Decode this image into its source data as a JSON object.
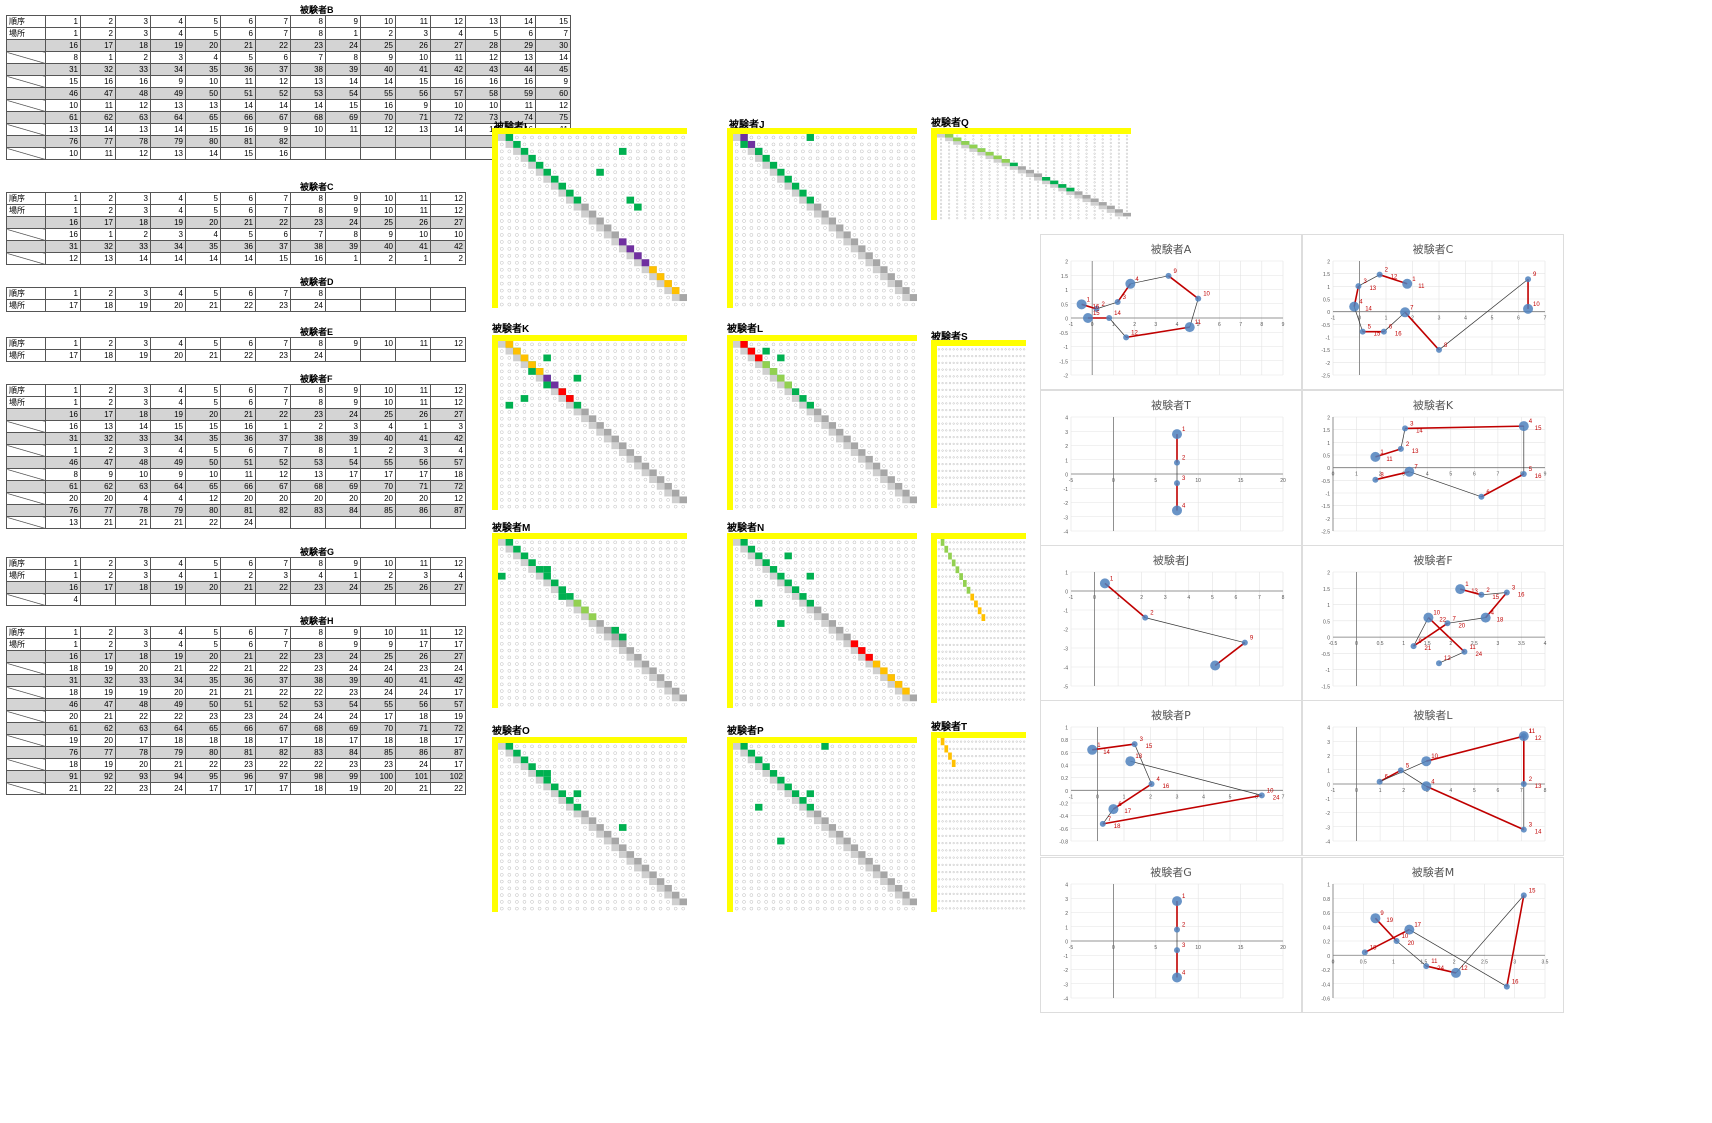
{
  "tables": [
    {
      "title": "被験者B",
      "hdr": [
        "順序",
        "場所"
      ],
      "rows": [
        [
          1,
          2,
          3,
          4,
          5,
          6,
          7,
          8,
          9,
          10,
          11,
          12,
          13,
          14,
          15
        ],
        [
          1,
          2,
          3,
          4,
          5,
          6,
          7,
          8,
          1,
          2,
          3,
          4,
          5,
          6,
          7
        ],
        [
          16,
          17,
          18,
          19,
          20,
          21,
          22,
          23,
          24,
          25,
          26,
          27,
          28,
          29,
          30
        ],
        [
          8,
          1,
          2,
          3,
          4,
          5,
          6,
          7,
          8,
          9,
          10,
          11,
          12,
          13,
          14
        ],
        [
          31,
          32,
          33,
          34,
          35,
          36,
          37,
          38,
          39,
          40,
          41,
          42,
          43,
          44,
          45
        ],
        [
          15,
          16,
          16,
          9,
          10,
          11,
          12,
          13,
          14,
          14,
          15,
          16,
          16,
          16,
          9
        ],
        [
          46,
          47,
          48,
          49,
          50,
          51,
          52,
          53,
          54,
          55,
          56,
          57,
          58,
          59,
          60
        ],
        [
          10,
          11,
          12,
          13,
          13,
          14,
          14,
          14,
          15,
          16,
          9,
          10,
          10,
          11,
          12
        ],
        [
          61,
          62,
          63,
          64,
          65,
          66,
          67,
          68,
          69,
          70,
          71,
          72,
          73,
          74,
          75
        ],
        [
          13,
          14,
          13,
          14,
          15,
          16,
          9,
          10,
          11,
          12,
          13,
          14,
          15,
          16,
          11
        ],
        [
          76,
          77,
          78,
          79,
          80,
          81,
          82,
          "",
          "",
          "",
          "",
          "",
          "",
          "",
          ""
        ],
        [
          10,
          11,
          12,
          13,
          14,
          15,
          16,
          "",
          "",
          "",
          "",
          "",
          "",
          "",
          ""
        ]
      ]
    },
    {
      "title": "被験者C",
      "hdr": [
        "順序",
        "場所"
      ],
      "rows": [
        [
          1,
          2,
          3,
          4,
          5,
          6,
          7,
          8,
          9,
          10,
          11,
          12
        ],
        [
          1,
          2,
          3,
          4,
          5,
          6,
          7,
          8,
          9,
          10,
          11,
          12
        ],
        [
          16,
          17,
          18,
          19,
          20,
          21,
          22,
          23,
          24,
          25,
          26,
          27
        ],
        [
          16,
          1,
          2,
          3,
          4,
          5,
          6,
          7,
          8,
          9,
          10,
          10
        ],
        [
          31,
          32,
          33,
          34,
          35,
          36,
          37,
          38,
          39,
          40,
          41,
          42
        ],
        [
          12,
          13,
          14,
          14,
          14,
          14,
          15,
          16,
          1,
          2,
          1,
          2
        ]
      ]
    },
    {
      "title": "被験者D",
      "hdr": [
        "順序",
        "場所"
      ],
      "rows": [
        [
          1,
          2,
          3,
          4,
          5,
          6,
          7,
          8,
          "",
          "",
          "",
          ""
        ],
        [
          17,
          18,
          19,
          20,
          21,
          22,
          23,
          24,
          "",
          "",
          "",
          ""
        ]
      ]
    },
    {
      "title": "被験者E",
      "hdr": [
        "順序",
        "場所"
      ],
      "rows": [
        [
          1,
          2,
          3,
          4,
          5,
          6,
          7,
          8,
          9,
          10,
          11,
          12
        ],
        [
          17,
          18,
          19,
          20,
          21,
          22,
          23,
          24,
          "",
          "",
          "",
          ""
        ]
      ]
    },
    {
      "title": "被験者F",
      "hdr": [
        "順序",
        "場所"
      ],
      "rows": [
        [
          1,
          2,
          3,
          4,
          5,
          6,
          7,
          8,
          9,
          10,
          11,
          12
        ],
        [
          1,
          2,
          3,
          4,
          5,
          6,
          7,
          8,
          9,
          10,
          11,
          12
        ],
        [
          16,
          17,
          18,
          19,
          20,
          21,
          22,
          23,
          24,
          25,
          26,
          27
        ],
        [
          16,
          13,
          14,
          15,
          15,
          16,
          1,
          2,
          3,
          4,
          1,
          3
        ],
        [
          31,
          32,
          33,
          34,
          35,
          36,
          37,
          38,
          39,
          40,
          41,
          42
        ],
        [
          1,
          2,
          3,
          4,
          5,
          6,
          7,
          8,
          1,
          2,
          3,
          4
        ],
        [
          46,
          47,
          48,
          49,
          50,
          51,
          52,
          53,
          54,
          55,
          56,
          57
        ],
        [
          8,
          9,
          10,
          9,
          10,
          11,
          12,
          13,
          17,
          17,
          17,
          18
        ],
        [
          61,
          62,
          63,
          64,
          65,
          66,
          67,
          68,
          69,
          70,
          71,
          72
        ],
        [
          20,
          20,
          4,
          4,
          12,
          20,
          20,
          20,
          20,
          20,
          20,
          12
        ],
        [
          76,
          77,
          78,
          79,
          80,
          81,
          82,
          83,
          84,
          85,
          86,
          87
        ],
        [
          13,
          21,
          21,
          21,
          22,
          24,
          "",
          "",
          "",
          "",
          "",
          ""
        ]
      ]
    },
    {
      "title": "被験者G",
      "hdr": [
        "順序",
        "場所"
      ],
      "rows": [
        [
          1,
          2,
          3,
          4,
          5,
          6,
          7,
          8,
          9,
          10,
          11,
          12
        ],
        [
          1,
          2,
          3,
          4,
          1,
          2,
          3,
          4,
          1,
          2,
          3,
          4
        ],
        [
          16,
          17,
          18,
          19,
          20,
          21,
          22,
          23,
          24,
          25,
          26,
          27
        ],
        [
          4,
          "",
          "",
          "",
          "",
          "",
          "",
          "",
          "",
          "",
          "",
          ""
        ]
      ]
    },
    {
      "title": "被験者H",
      "hdr": [
        "順序",
        "場所"
      ],
      "rows": [
        [
          1,
          2,
          3,
          4,
          5,
          6,
          7,
          8,
          9,
          10,
          11,
          12
        ],
        [
          1,
          2,
          3,
          4,
          5,
          6,
          7,
          8,
          9,
          9,
          17,
          17
        ],
        [
          16,
          17,
          18,
          19,
          20,
          21,
          22,
          23,
          24,
          25,
          26,
          27
        ],
        [
          18,
          19,
          20,
          21,
          22,
          21,
          22,
          23,
          24,
          24,
          23,
          24
        ],
        [
          31,
          32,
          33,
          34,
          35,
          36,
          37,
          38,
          39,
          40,
          41,
          42
        ],
        [
          18,
          19,
          19,
          20,
          21,
          21,
          22,
          22,
          23,
          24,
          24,
          17
        ],
        [
          46,
          47,
          48,
          49,
          50,
          51,
          52,
          53,
          54,
          55,
          56,
          57
        ],
        [
          20,
          21,
          22,
          22,
          23,
          23,
          24,
          24,
          24,
          17,
          18,
          19
        ],
        [
          61,
          62,
          63,
          64,
          65,
          66,
          67,
          68,
          69,
          70,
          71,
          72
        ],
        [
          19,
          20,
          17,
          18,
          18,
          18,
          17,
          18,
          17,
          18,
          18,
          17
        ],
        [
          76,
          77,
          78,
          79,
          80,
          81,
          82,
          83,
          84,
          85,
          86,
          87
        ],
        [
          18,
          19,
          20,
          21,
          22,
          23,
          22,
          22,
          23,
          23,
          24,
          17
        ],
        [
          91,
          92,
          93,
          94,
          95,
          96,
          97,
          98,
          99,
          100,
          101,
          102
        ],
        [
          21,
          22,
          23,
          24,
          17,
          17,
          17,
          18,
          19,
          20,
          21,
          22
        ]
      ]
    }
  ],
  "matrix_labels": [
    "被験者I",
    "被験者J",
    "被験者Q",
    "被験者K",
    "被験者L",
    "被験者S",
    "被験者M",
    "被験者N",
    "被験者O",
    "被験者P",
    "被験者T"
  ],
  "plot_titles": [
    "被験者A",
    "被験者C",
    "被験者T",
    "被験者K",
    "被験者J",
    "被験者F",
    "被験者P",
    "被験者L",
    "被験者G",
    "被験者M"
  ],
  "plots": {
    "A": {
      "xticks": [
        "-1",
        "0",
        "1",
        "2",
        "3",
        "4",
        "5",
        "6",
        "7",
        "8",
        "9"
      ],
      "yticks": [
        "2",
        "1.5",
        "1",
        "0.5",
        "0",
        "-0.5",
        "-1",
        "-1.5",
        "-2"
      ],
      "labels": [
        "1",
        "2",
        "3",
        "4",
        "9",
        "10",
        "11",
        "12",
        "14",
        "15",
        "16"
      ]
    },
    "C": {
      "xticks": [
        "-1",
        "0",
        "1",
        "2",
        "3",
        "4",
        "5",
        "6",
        "7"
      ],
      "yticks": [
        "2",
        "1.5",
        "1",
        "0.5",
        "0",
        "-0.5",
        "-1",
        "-1.5",
        "-2",
        "-2.5"
      ],
      "labels": [
        "1",
        "2",
        "3",
        "4",
        "5",
        "6",
        "7",
        "8",
        "9",
        "10",
        "11",
        "12",
        "13",
        "14",
        "15",
        "16"
      ]
    },
    "T": {
      "xticks": [
        "-5",
        "0",
        "5",
        "10",
        "15",
        "20"
      ],
      "yticks": [
        "4",
        "3",
        "2",
        "1",
        "0",
        "-1",
        "-2",
        "-3",
        "-4"
      ],
      "labels": [
        "1",
        "2",
        "3",
        "4"
      ]
    },
    "K": {
      "xticks": [
        "0",
        "1",
        "2",
        "3",
        "4",
        "5",
        "6",
        "7",
        "8",
        "9"
      ],
      "yticks": [
        "2",
        "1.5",
        "1",
        "0.5",
        "0",
        "-0.5",
        "-1",
        "-1.5",
        "-2",
        "-2.5"
      ],
      "labels": [
        "1",
        "2",
        "3",
        "4",
        "5",
        "6",
        "7",
        "8",
        "11",
        "13",
        "14",
        "15",
        "16"
      ]
    },
    "J": {
      "xticks": [
        "-1",
        "0",
        "1",
        "2",
        "3",
        "4",
        "5",
        "6",
        "7",
        "8"
      ],
      "yticks": [
        "1",
        "0",
        "-1",
        "-2",
        "-3",
        "-4",
        "-5"
      ],
      "labels": [
        "1",
        "2",
        "9"
      ]
    },
    "F": {
      "xticks": [
        "-0.5",
        "0",
        "0.5",
        "1",
        "1.5",
        "2",
        "2.5",
        "3",
        "3.5",
        "4"
      ],
      "yticks": [
        "2",
        "1.5",
        "1",
        "0.5",
        "0",
        "-0.5",
        "-1",
        "-1.5"
      ],
      "labels": [
        "1",
        "2",
        "3",
        "4",
        "7",
        "9",
        "10",
        "11",
        "12",
        "13",
        "15",
        "16",
        "18",
        "20",
        "21",
        "22",
        "24"
      ]
    },
    "P": {
      "xticks": [
        "-1",
        "0",
        "1",
        "2",
        "3",
        "4",
        "5",
        "6",
        "7"
      ],
      "yticks": [
        "1",
        "0.8",
        "0.6",
        "0.4",
        "0.2",
        "0",
        "-0.2",
        "-0.4",
        "-0.6",
        "-0.8"
      ],
      "labels": [
        "1",
        "3",
        "4",
        "6",
        "7",
        "10",
        "13",
        "14",
        "15",
        "16",
        "17",
        "18",
        "24"
      ]
    },
    "L": {
      "xticks": [
        "-1",
        "0",
        "1",
        "2",
        "3",
        "4",
        "5",
        "6",
        "7",
        "8"
      ],
      "yticks": [
        "4",
        "3",
        "2",
        "1",
        "0",
        "-1",
        "-2",
        "-3",
        "-4"
      ],
      "labels": [
        "1",
        "2",
        "3",
        "4",
        "5",
        "6",
        "10",
        "11",
        "12",
        "13",
        "14"
      ]
    },
    "G": {
      "xticks": [
        "-5",
        "0",
        "5",
        "10",
        "15",
        "20"
      ],
      "yticks": [
        "4",
        "3",
        "2",
        "1",
        "0",
        "-1",
        "-2",
        "-3",
        "-4"
      ],
      "labels": [
        "1",
        "2",
        "3",
        "4"
      ]
    },
    "M": {
      "xticks": [
        "0",
        "0.5",
        "1",
        "1.5",
        "2",
        "2.5",
        "3",
        "3.5"
      ],
      "yticks": [
        "1",
        "0.8",
        "0.6",
        "0.4",
        "0.2",
        "0",
        "-0.2",
        "-0.4",
        "-0.6"
      ],
      "labels": [
        "9",
        "10",
        "11",
        "12",
        "15",
        "16",
        "17",
        "18",
        "19",
        "20",
        "24"
      ]
    }
  },
  "colors": {
    "yellow": "#ffff00",
    "green": "#00b050",
    "gray": "#a6a6a6",
    "purple": "#7030a0",
    "orange": "#ffc000",
    "red": "#ff0000",
    "lightgreen": "#92d050",
    "arrow": "#c00000",
    "point": "#4f81bd"
  }
}
